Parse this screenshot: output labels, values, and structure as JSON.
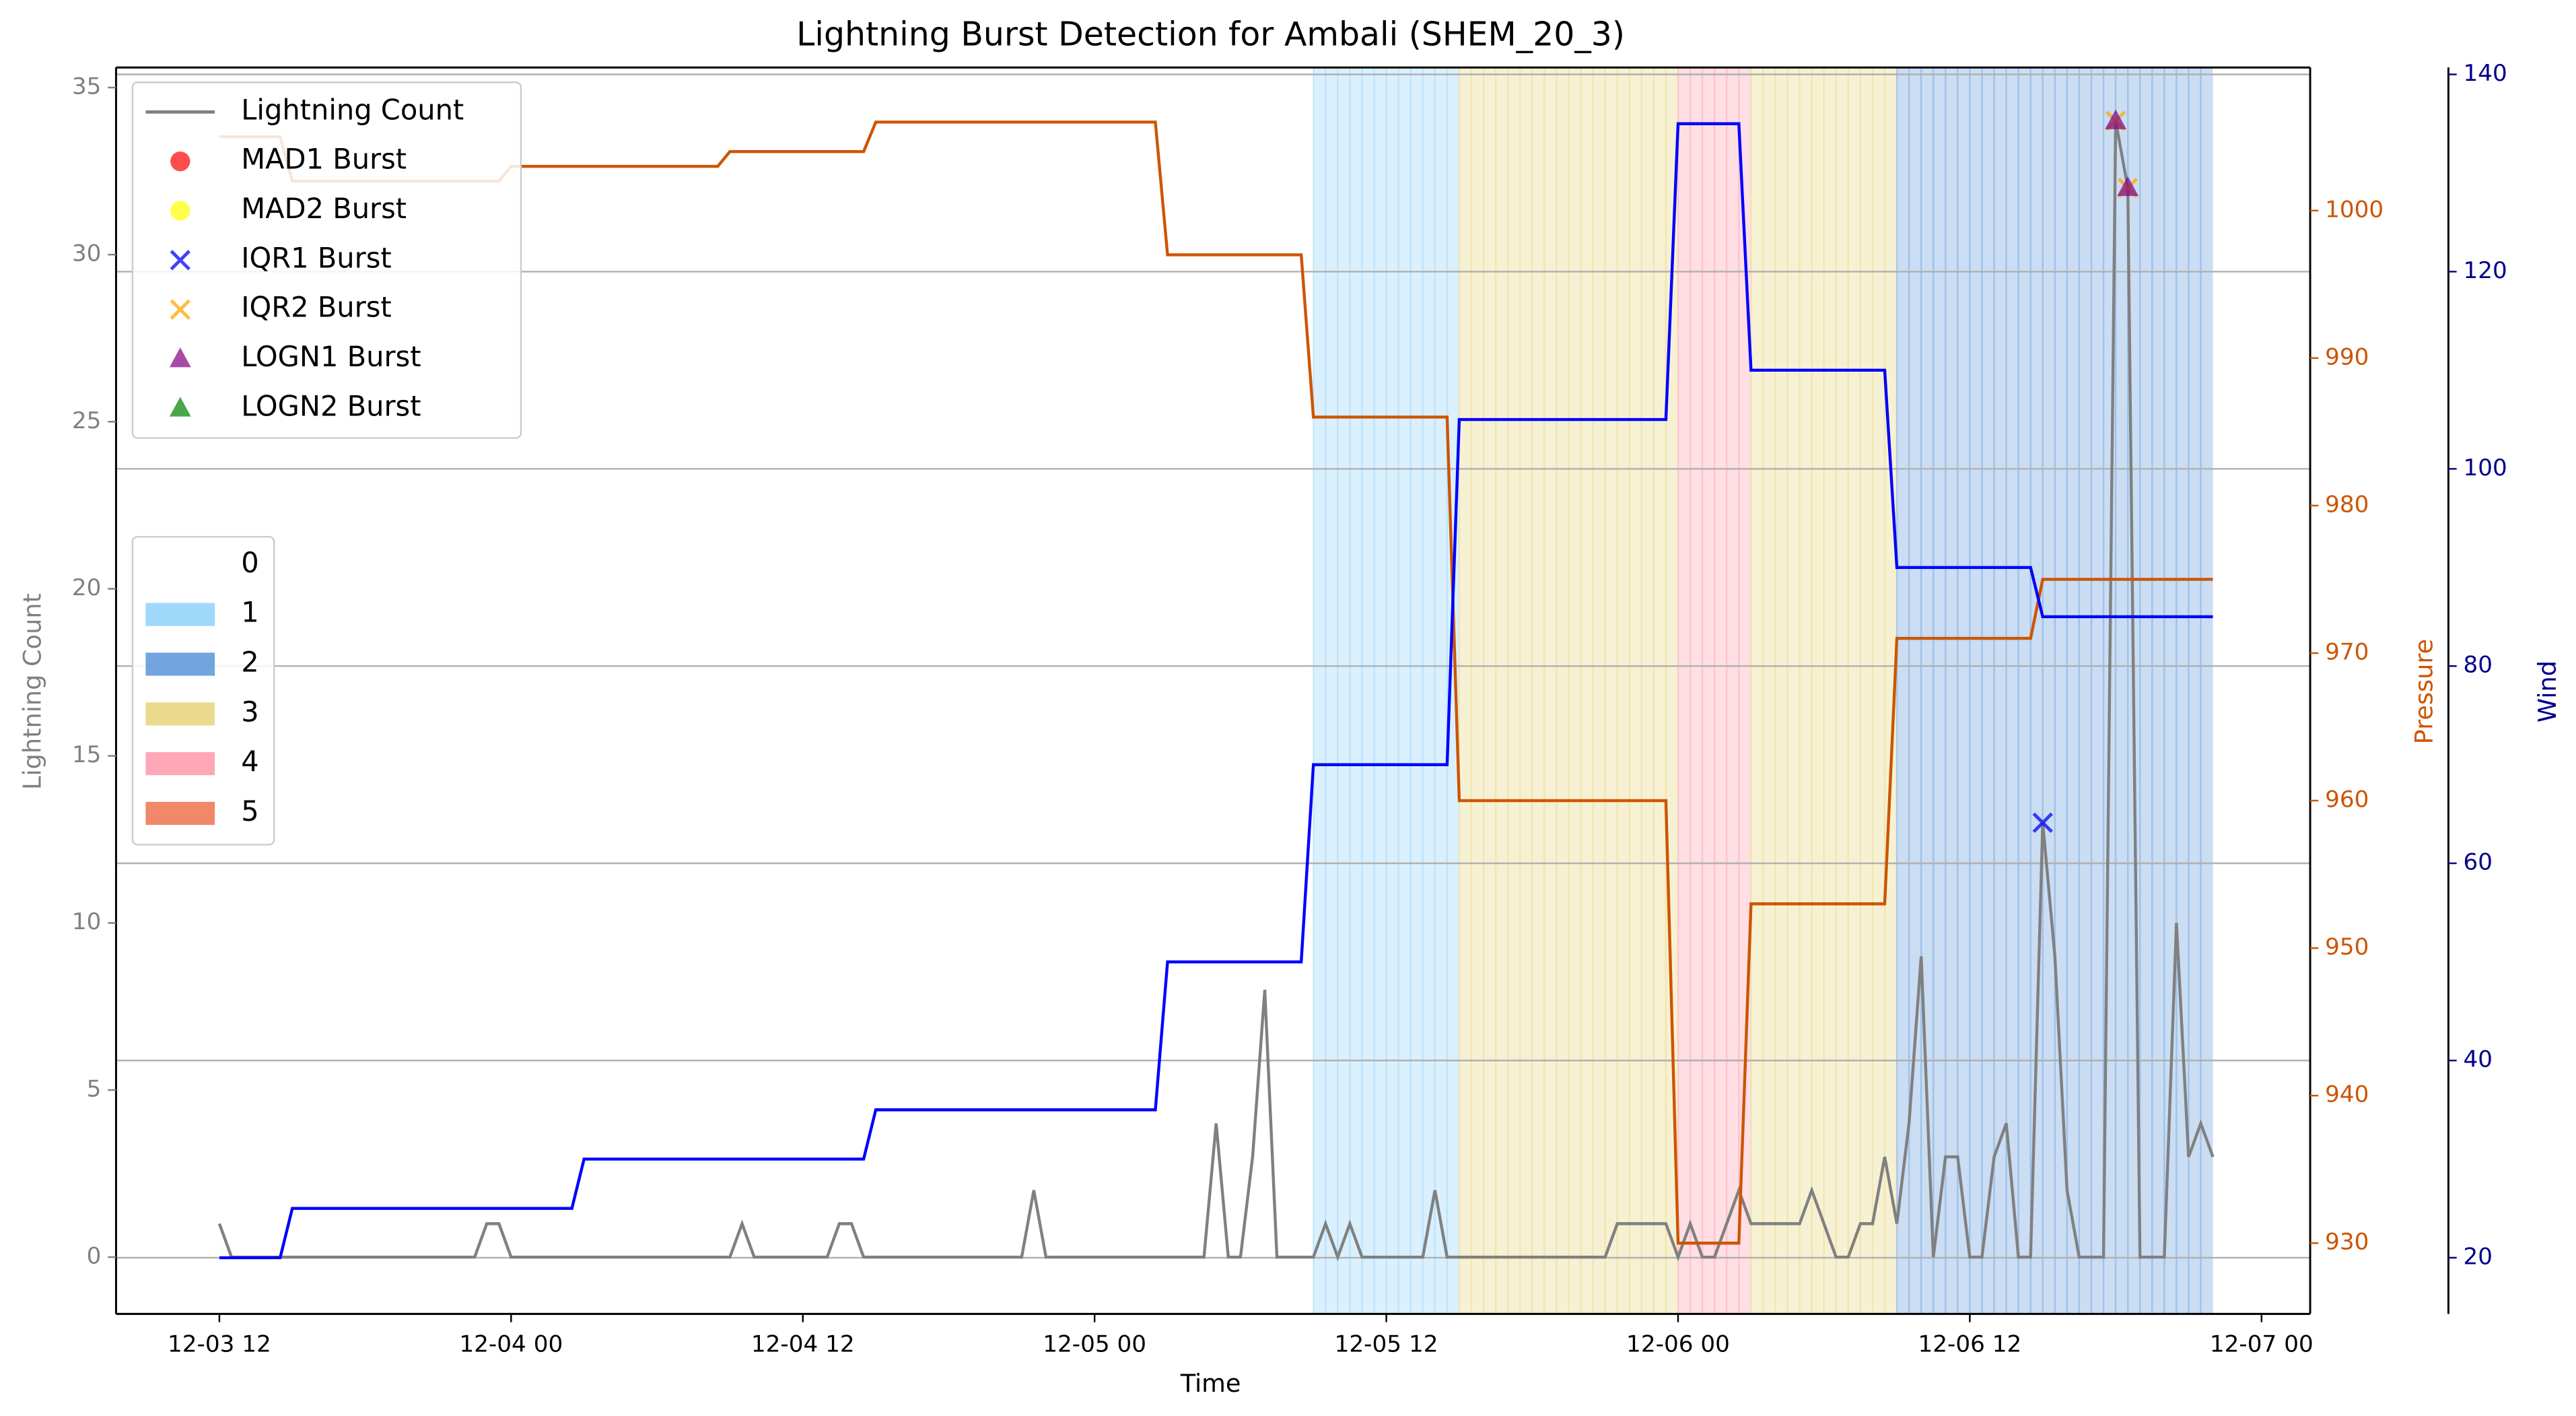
{
  "chart_data": {
    "type": "line",
    "title": "Lightning Burst Detection for Ambali (SHEM_20_3)",
    "x_label": "Time",
    "y_label": "Lightning Count",
    "y2_label": "Pressure",
    "y3_label": "Wind",
    "xlim": [
      "12-03 07:45",
      "12-07 02:00"
    ],
    "xticks": [
      "12-03 12",
      "12-04 00",
      "12-04 12",
      "12-05 00",
      "12-05 12",
      "12-06 00",
      "12-06 12",
      "12-07 00"
    ],
    "ylim": [
      -1.7,
      35.6
    ],
    "yticks": [
      0,
      5,
      10,
      15,
      20,
      25,
      30,
      35
    ],
    "y2lim": [
      925.2,
      1009.7
    ],
    "y2ticks": [
      930,
      940,
      950,
      960,
      970,
      980,
      990,
      1000
    ],
    "y3lim": [
      14.3,
      140.7
    ],
    "y3ticks": [
      20,
      40,
      60,
      80,
      100,
      120,
      140
    ],
    "grid": "y3",
    "axis_colors": {
      "y": "#808080",
      "y2": "#cc5500",
      "y3": "#00008b"
    },
    "series": [
      {
        "name": "Lightning Count",
        "color": "#808080",
        "axis": "y",
        "x": [
          "12-03 12:00",
          "12-03 12:30",
          "12-03 22:30",
          "12-03 23:00",
          "12-03 23:30",
          "12-04 00:00",
          "12-04 09:00",
          "12-04 09:30",
          "12-04 10:00",
          "12-04 13:00",
          "12-04 13:30",
          "12-04 14:00",
          "12-04 14:30",
          "12-04 21:00",
          "12-04 21:30",
          "12-04 22:00",
          "12-05 04:30",
          "12-05 05:00",
          "12-05 05:30",
          "12-05 06:00",
          "12-05 06:30",
          "12-05 07:00",
          "12-05 07:30",
          "12-05 09:00",
          "12-05 09:30",
          "12-05 10:00",
          "12-05 10:30",
          "12-05 11:00",
          "12-05 13:30",
          "12-05 14:00",
          "12-05 14:30",
          "12-05 21:00",
          "12-05 21:30",
          "12-05 23:30",
          "12-06 00:00",
          "12-06 00:30",
          "12-06 01:00",
          "12-06 01:30",
          "12-06 02:30",
          "12-06 03:00",
          "12-06 05:00",
          "12-06 05:30",
          "12-06 06:00",
          "12-06 06:30",
          "12-06 07:00",
          "12-06 07:30",
          "12-06 08:00",
          "12-06 08:30",
          "12-06 09:00",
          "12-06 09:30",
          "12-06 10:00",
          "12-06 10:30",
          "12-06 11:00",
          "12-06 11:30",
          "12-06 12:00",
          "12-06 12:30",
          "12-06 13:00",
          "12-06 13:30",
          "12-06 14:00",
          "12-06 14:30",
          "12-06 15:00",
          "12-06 15:30",
          "12-06 16:00",
          "12-06 16:30",
          "12-06 17:30",
          "12-06 18:00",
          "12-06 18:30",
          "12-06 19:00",
          "12-06 20:00",
          "12-06 20:30",
          "12-06 21:00",
          "12-06 21:30",
          "12-06 22:00"
        ],
        "values": [
          1,
          0,
          0,
          1,
          1,
          0,
          0,
          1,
          0,
          0,
          1,
          1,
          0,
          0,
          2,
          0,
          0,
          4,
          0,
          0,
          3,
          8,
          0,
          0,
          1,
          0,
          1,
          0,
          0,
          2,
          0,
          0,
          1,
          1,
          0,
          1,
          0,
          0,
          2,
          1,
          1,
          2,
          1,
          0,
          0,
          1,
          1,
          3,
          1,
          4,
          9,
          0,
          3,
          3,
          0,
          0,
          3,
          4,
          0,
          0,
          13,
          9,
          2,
          0,
          0,
          34,
          32,
          0,
          0,
          10,
          3,
          4,
          3
        ]
      },
      {
        "name": "Pressure",
        "color": "#cc5500",
        "axis": "y2",
        "x": [
          "12-03 12:00",
          "12-03 14:30",
          "12-03 15:00",
          "12-03 23:30",
          "12-04 00:00",
          "12-04 08:30",
          "12-04 09:00",
          "12-04 14:30",
          "12-04 15:00",
          "12-05 02:30",
          "12-05 03:00",
          "12-05 08:30",
          "12-05 09:00",
          "12-05 14:30",
          "12-05 15:00",
          "12-05 23:30",
          "12-06 00:00",
          "12-06 02:30",
          "12-06 03:00",
          "12-06 08:30",
          "12-06 09:00",
          "12-06 14:30",
          "12-06 15:00",
          "12-06 22:00"
        ],
        "values": [
          1005,
          1005,
          1002,
          1002,
          1003,
          1003,
          1004,
          1004,
          1006,
          1006,
          997,
          997,
          986,
          986,
          960,
          960,
          930,
          930,
          953,
          953,
          971,
          971,
          975,
          975
        ]
      },
      {
        "name": "Wind",
        "color": "#0000ff",
        "axis": "y3",
        "x": [
          "12-03 12:00",
          "12-03 14:30",
          "12-03 15:00",
          "12-04 02:30",
          "12-04 03:00",
          "12-04 14:30",
          "12-04 15:00",
          "12-05 02:30",
          "12-05 03:00",
          "12-05 08:30",
          "12-05 09:00",
          "12-05 14:30",
          "12-05 15:00",
          "12-05 23:30",
          "12-06 00:00",
          "12-06 02:30",
          "12-06 03:00",
          "12-06 08:30",
          "12-06 09:00",
          "12-06 14:30",
          "12-06 15:00",
          "12-06 22:00"
        ],
        "values": [
          20,
          20,
          25,
          25,
          30,
          30,
          35,
          35,
          50,
          50,
          70,
          70,
          105,
          105,
          135,
          135,
          110,
          110,
          90,
          90,
          85,
          85
        ]
      }
    ],
    "bursts": [
      {
        "name": "MAD1 Burst",
        "color": "#ff0000",
        "marker": "o",
        "x": [],
        "values": []
      },
      {
        "name": "MAD2 Burst",
        "color": "#ffff00",
        "marker": "o",
        "x": [],
        "values": []
      },
      {
        "name": "IQR1 Burst",
        "color": "#0000ff",
        "marker": "x",
        "x": [
          "12-06 15:00"
        ],
        "values": [
          13
        ]
      },
      {
        "name": "IQR2 Burst",
        "color": "#ffa500",
        "marker": "x",
        "x": [
          "12-06 18:00",
          "12-06 18:30"
        ],
        "values": [
          34,
          32
        ]
      },
      {
        "name": "LOGN1 Burst",
        "color": "#800080",
        "marker": "^",
        "x": [
          "12-06 18:00",
          "12-06 18:30"
        ],
        "values": [
          34,
          32
        ]
      },
      {
        "name": "LOGN2 Burst",
        "color": "#008000",
        "marker": "^",
        "x": [],
        "values": []
      }
    ],
    "category_legend": {
      "labels": [
        "0",
        "1",
        "2",
        "3",
        "4",
        "5"
      ],
      "colors": [
        "#ffffff",
        "#87cefa",
        "#4f8fd6",
        "#e6d170",
        "#ff91a4",
        "#ec6a43"
      ]
    },
    "bands": [
      {
        "start": "12-05 09:00",
        "end": "12-05 15:00",
        "category": 1
      },
      {
        "start": "12-05 15:00",
        "end": "12-06 00:00",
        "category": 3
      },
      {
        "start": "12-06 00:00",
        "end": "12-06 03:00",
        "category": 4
      },
      {
        "start": "12-06 03:00",
        "end": "12-06 09:00",
        "category": 3
      },
      {
        "start": "12-06 09:00",
        "end": "12-06 22:00",
        "category": 2
      }
    ]
  }
}
